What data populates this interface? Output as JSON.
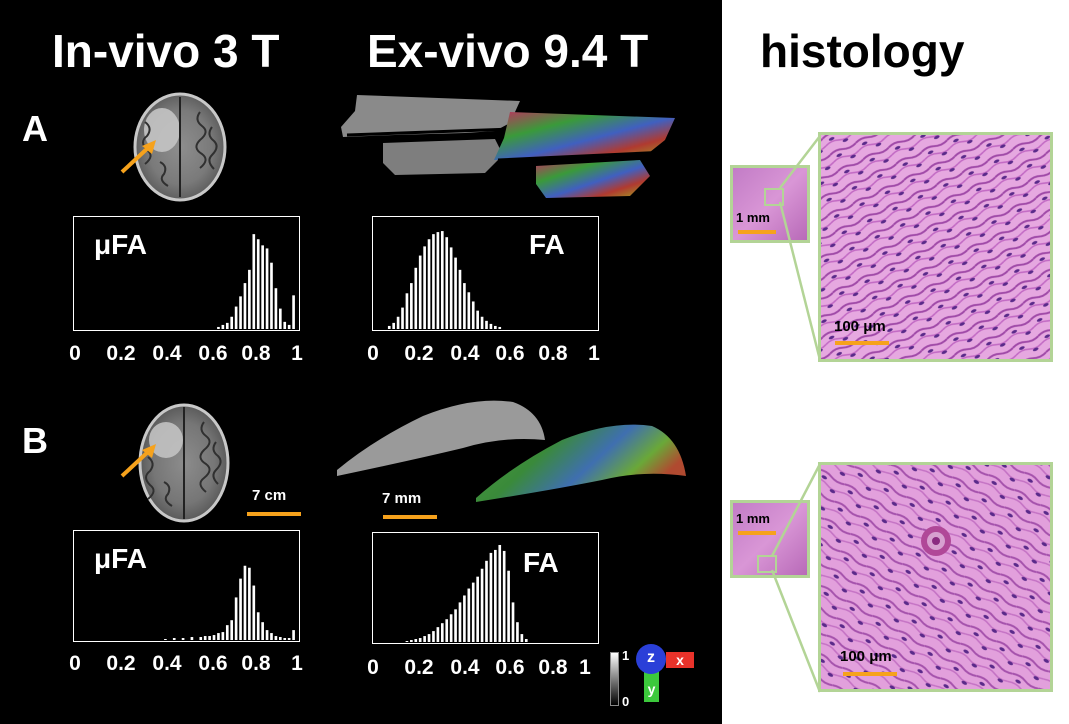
{
  "columns": {
    "invivo": "In-vivo 3 T",
    "exvivo": "Ex-vivo 9.4 T",
    "histology": "histology"
  },
  "rows": [
    {
      "label": "A",
      "invivo_hist_label": "μFA",
      "exvivo_hist_label": "FA",
      "histology_inset_scale": "1 mm",
      "histology_zoom_scale": "100 μm"
    },
    {
      "label": "B",
      "invivo_hist_label": "μFA",
      "exvivo_hist_label": "FA",
      "invivo_scale": "7 cm",
      "exvivo_scale": "7 mm",
      "histology_inset_scale": "1 mm",
      "histology_zoom_scale": "100 μm"
    }
  ],
  "x_ticks": [
    "0",
    "0.2",
    "0.4",
    "0.6",
    "0.8",
    "1"
  ],
  "colorbar": {
    "max": "1",
    "min": "0"
  },
  "axes_glyph": {
    "z": "z",
    "x": "x",
    "y": "y"
  },
  "colors": {
    "orange": "#f6a21c",
    "histo_border": "#b3d496",
    "axis_z": "#2a3fd8",
    "axis_x": "#e8322a",
    "axis_y": "#3cc93c"
  },
  "chart_data": [
    {
      "type": "bar",
      "title": "μFA",
      "xlim": [
        0,
        1
      ],
      "x": [
        0.64,
        0.66,
        0.68,
        0.7,
        0.72,
        0.74,
        0.76,
        0.78,
        0.8,
        0.82,
        0.84,
        0.86,
        0.88,
        0.9,
        0.92,
        0.94,
        0.96,
        0.98
      ],
      "values": [
        0.02,
        0.04,
        0.06,
        0.12,
        0.22,
        0.32,
        0.45,
        0.58,
        0.93,
        0.88,
        0.82,
        0.79,
        0.65,
        0.4,
        0.2,
        0.07,
        0.04,
        0.33
      ]
    },
    {
      "type": "bar",
      "title": "FA",
      "xlim": [
        0,
        1
      ],
      "x": [
        0.06,
        0.08,
        0.1,
        0.12,
        0.14,
        0.16,
        0.18,
        0.2,
        0.22,
        0.24,
        0.26,
        0.28,
        0.3,
        0.32,
        0.34,
        0.36,
        0.38,
        0.4,
        0.42,
        0.44,
        0.46,
        0.48,
        0.5,
        0.52,
        0.54,
        0.56
      ],
      "values": [
        0.03,
        0.06,
        0.12,
        0.21,
        0.35,
        0.45,
        0.6,
        0.72,
        0.81,
        0.88,
        0.93,
        0.95,
        0.96,
        0.9,
        0.8,
        0.7,
        0.58,
        0.45,
        0.36,
        0.27,
        0.18,
        0.12,
        0.08,
        0.05,
        0.03,
        0.02
      ]
    },
    {
      "type": "bar",
      "title": "μFA",
      "xlim": [
        0,
        1
      ],
      "x": [
        0.4,
        0.44,
        0.48,
        0.52,
        0.56,
        0.58,
        0.6,
        0.62,
        0.64,
        0.66,
        0.68,
        0.7,
        0.72,
        0.74,
        0.76,
        0.78,
        0.8,
        0.82,
        0.84,
        0.86,
        0.88,
        0.9,
        0.92,
        0.94,
        0.96,
        0.98
      ],
      "values": [
        0.01,
        0.02,
        0.02,
        0.03,
        0.03,
        0.04,
        0.04,
        0.05,
        0.07,
        0.08,
        0.15,
        0.2,
        0.43,
        0.62,
        0.75,
        0.73,
        0.55,
        0.28,
        0.18,
        0.1,
        0.07,
        0.04,
        0.03,
        0.02,
        0.02,
        0.1
      ]
    },
    {
      "type": "bar",
      "title": "FA",
      "xlim": [
        0,
        1
      ],
      "x": [
        0.14,
        0.16,
        0.18,
        0.2,
        0.22,
        0.24,
        0.26,
        0.28,
        0.3,
        0.32,
        0.34,
        0.36,
        0.38,
        0.4,
        0.42,
        0.44,
        0.46,
        0.48,
        0.5,
        0.52,
        0.54,
        0.56,
        0.58,
        0.6,
        0.62,
        0.64,
        0.66,
        0.68
      ],
      "values": [
        0.01,
        0.02,
        0.03,
        0.04,
        0.06,
        0.08,
        0.11,
        0.15,
        0.19,
        0.23,
        0.28,
        0.33,
        0.4,
        0.47,
        0.54,
        0.6,
        0.66,
        0.74,
        0.82,
        0.9,
        0.93,
        0.98,
        0.92,
        0.72,
        0.4,
        0.2,
        0.08,
        0.03
      ]
    }
  ]
}
